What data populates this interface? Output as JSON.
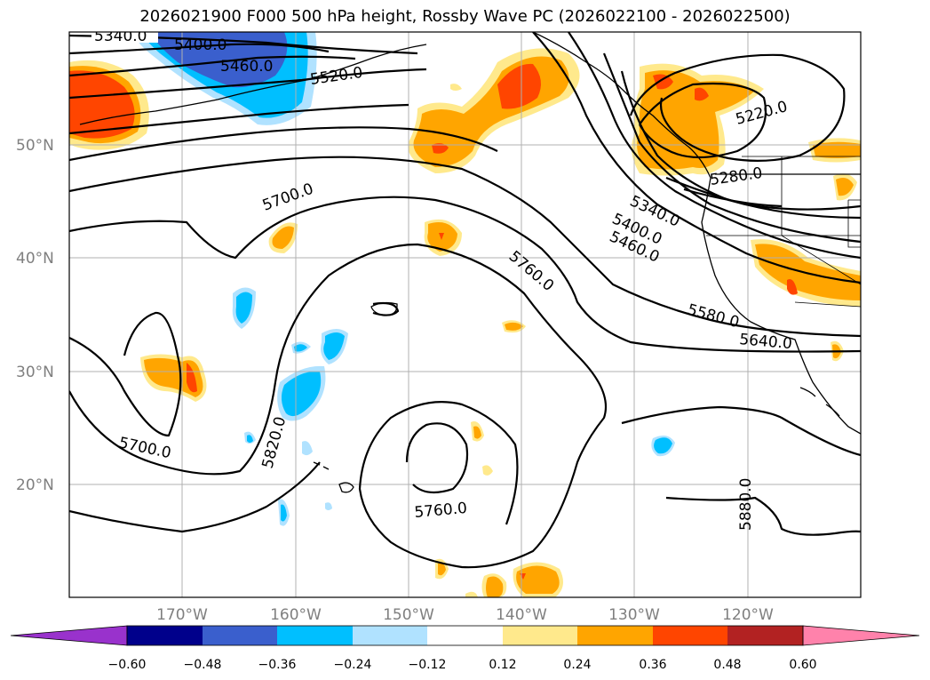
{
  "title": "2026021900 F000 500 hPa height, Rossby Wave PC (2026022100 - 2026022500)",
  "lat_labels": [
    "50°N",
    "40°N",
    "30°N",
    "20°N"
  ],
  "lon_labels": [
    "170°W",
    "160°W",
    "150°W",
    "140°W",
    "130°W",
    "120°W"
  ],
  "contour_labels": [
    "5340.0",
    "5400.0",
    "5460.0",
    "5520.0",
    "5700.0",
    "5760.0",
    "5220.0",
    "5280.0",
    "5340.0",
    "5400.0",
    "5460.0",
    "5580.0",
    "5640.0",
    "5700.0",
    "5820.0",
    "5760.0",
    "5880.0"
  ],
  "colorbar": {
    "ticks": [
      "−0.60",
      "−0.48",
      "−0.36",
      "−0.24",
      "−0.12",
      "0.12",
      "0.24",
      "0.36",
      "0.48",
      "0.60"
    ],
    "colors": [
      "#9932CC",
      "#00008B",
      "#3A5FCD",
      "#00BFFF",
      "#B0E2FF",
      "#FFFFFF",
      "#FFE98C",
      "#FFA500",
      "#FF4500",
      "#B22222",
      "#FF82AB"
    ]
  }
}
